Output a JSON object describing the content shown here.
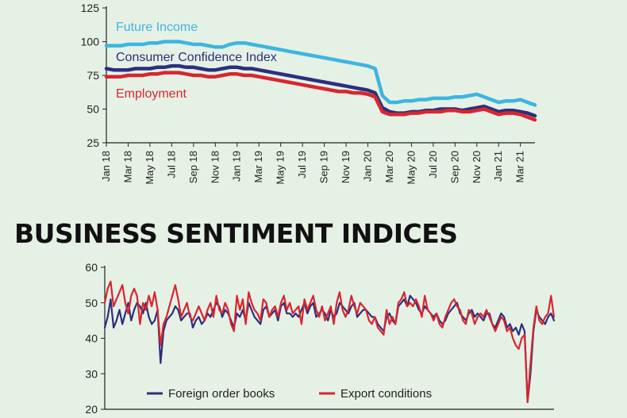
{
  "chart_data": [
    {
      "type": "line",
      "title": "",
      "xlabel": "",
      "ylabel": "",
      "ylim": [
        25,
        125
      ],
      "yticks": [
        25,
        50,
        75,
        100,
        125
      ],
      "xtick_labels": [
        "Jan 18",
        "Mar 18",
        "May 18",
        "Jul 18",
        "Sep 18",
        "Nov 18",
        "Jan 19",
        "Mar 19",
        "May 19",
        "Jul 19",
        "Sep 19",
        "Nov 19",
        "Jan 20",
        "Mar 20",
        "May 20",
        "Jul 20",
        "Sep 20",
        "Nov 20",
        "Jan 21",
        "Mar 21"
      ],
      "series": [
        {
          "name": "Future Income",
          "color": "#3db5e0",
          "values": [
            97,
            97,
            97,
            98,
            98,
            98,
            99,
            99,
            100,
            100,
            100,
            99,
            98,
            98,
            97,
            96,
            96,
            98,
            99,
            99,
            98,
            97,
            96,
            95,
            94,
            93,
            92,
            91,
            90,
            89,
            88,
            87,
            86,
            85,
            84,
            83,
            82,
            80,
            60,
            55,
            55,
            56,
            56,
            57,
            57,
            58,
            58,
            58,
            59,
            59,
            60,
            61,
            59,
            57,
            55,
            56,
            56,
            57,
            55,
            53
          ]
        },
        {
          "name": "Consumer Confidence Index",
          "color": "#2b2f7e",
          "values": [
            80,
            79,
            79,
            79,
            80,
            80,
            80,
            81,
            81,
            82,
            82,
            81,
            81,
            80,
            79,
            79,
            80,
            81,
            81,
            80,
            80,
            79,
            78,
            77,
            76,
            75,
            74,
            73,
            72,
            71,
            70,
            69,
            68,
            67,
            66,
            65,
            64,
            62,
            51,
            48,
            47,
            47,
            48,
            48,
            49,
            49,
            50,
            50,
            50,
            49,
            50,
            51,
            52,
            50,
            48,
            49,
            49,
            48,
            47,
            45
          ]
        },
        {
          "name": "Employment",
          "color": "#d8262e",
          "values": [
            74,
            74,
            74,
            75,
            75,
            75,
            76,
            76,
            77,
            77,
            77,
            76,
            75,
            75,
            74,
            74,
            75,
            76,
            76,
            75,
            75,
            74,
            73,
            72,
            71,
            70,
            69,
            68,
            67,
            66,
            65,
            64,
            63,
            63,
            62,
            62,
            61,
            59,
            48,
            46,
            46,
            46,
            47,
            47,
            48,
            48,
            48,
            49,
            49,
            48,
            48,
            49,
            50,
            48,
            46,
            47,
            47,
            46,
            44,
            42
          ]
        }
      ]
    },
    {
      "type": "line",
      "title": "BUSINESS SENTIMENT INDICES",
      "xlabel": "",
      "ylabel": "",
      "ylim": [
        20,
        60
      ],
      "yticks": [
        20,
        30,
        40,
        50,
        60
      ],
      "legend_position": "bottom",
      "series": [
        {
          "name": "Foreign order books",
          "color": "#2b2f7e",
          "values": [
            43,
            46,
            51,
            43,
            45,
            48,
            44,
            47,
            50,
            45,
            48,
            50,
            49,
            47,
            50,
            46,
            44,
            45,
            48,
            33,
            42,
            45,
            46,
            47,
            49,
            48,
            45,
            46,
            47,
            47,
            43,
            45,
            46,
            44,
            45,
            47,
            46,
            48,
            50,
            49,
            46,
            48,
            47,
            45,
            43,
            47,
            46,
            48,
            45,
            50,
            48,
            46,
            45,
            44,
            48,
            49,
            46,
            47,
            48,
            45,
            49,
            50,
            47,
            47,
            46,
            47,
            46,
            48,
            50,
            47,
            49,
            50,
            46,
            47,
            48,
            47,
            45,
            48,
            46,
            47,
            50,
            49,
            48,
            47,
            49,
            50,
            46,
            47,
            48,
            48,
            47,
            46,
            46,
            44,
            43,
            42,
            46,
            47,
            45,
            44,
            49,
            50,
            51,
            49,
            52,
            51,
            50,
            48,
            47,
            49,
            48,
            47,
            46,
            47,
            45,
            44,
            45,
            47,
            48,
            49,
            50,
            47,
            46,
            45,
            47,
            48,
            46,
            47,
            46,
            45,
            47,
            47,
            44,
            43,
            45,
            47,
            46,
            43,
            44,
            42,
            43,
            41,
            44,
            42,
            22,
            30,
            42,
            48,
            46,
            45,
            44,
            46,
            47,
            45
          ]
        },
        {
          "name": "Export conditions",
          "color": "#d8262e",
          "values": [
            50,
            54,
            56,
            49,
            51,
            53,
            55,
            50,
            47,
            52,
            54,
            52,
            44,
            50,
            48,
            52,
            49,
            53,
            48,
            38,
            44,
            46,
            49,
            52,
            55,
            51,
            46,
            48,
            50,
            46,
            45,
            47,
            49,
            47,
            45,
            48,
            50,
            46,
            52,
            48,
            47,
            50,
            48,
            44,
            42,
            52,
            48,
            51,
            44,
            53,
            50,
            48,
            47,
            45,
            51,
            50,
            46,
            48,
            49,
            46,
            50,
            52,
            48,
            50,
            47,
            48,
            49,
            44,
            51,
            48,
            50,
            52,
            48,
            46,
            49,
            45,
            47,
            49,
            44,
            50,
            53,
            48,
            46,
            48,
            52,
            49,
            47,
            50,
            49,
            48,
            45,
            44,
            46,
            43,
            42,
            41,
            48,
            44,
            46,
            44,
            50,
            51,
            53,
            49,
            50,
            49,
            51,
            49,
            46,
            52,
            48,
            47,
            45,
            47,
            44,
            43,
            46,
            48,
            50,
            51,
            49,
            48,
            45,
            44,
            48,
            47,
            44,
            46,
            47,
            46,
            48,
            46,
            44,
            42,
            44,
            46,
            45,
            42,
            43,
            40,
            38,
            37,
            40,
            41,
            22,
            33,
            43,
            49,
            45,
            44,
            46,
            47,
            52,
            46
          ]
        }
      ]
    }
  ]
}
